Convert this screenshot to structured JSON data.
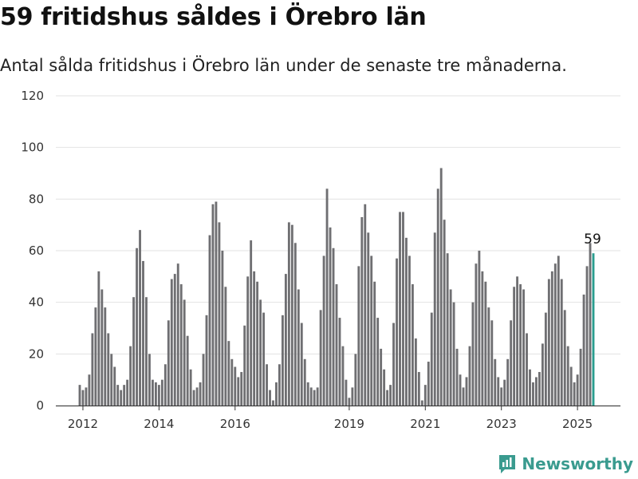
{
  "title": "59 fritidshus såldes i Örebro län",
  "subtitle": "Antal sålda fritidshus i Örebro län under de senaste tre månaderna.",
  "brand": "Newsworthy",
  "colors": {
    "bar": "#6f6f72",
    "highlight": "#2a9d8f",
    "brand": "#3a9b8f",
    "grid": "#e2e2e2"
  },
  "chart_data": {
    "type": "bar",
    "title": "59 fritidshus såldes i Örebro län",
    "subtitle": "Antal sålda fritidshus i Örebro län under de senaste tre månaderna.",
    "xlabel": "",
    "ylabel": "",
    "ylim": [
      0,
      120
    ],
    "yticks": [
      0,
      20,
      40,
      60,
      80,
      100,
      120
    ],
    "grid": true,
    "x_start": "2011-12",
    "x_end": "2025-07",
    "xtick_labels": [
      {
        "label": "2012",
        "date": "2012-01"
      },
      {
        "label": "2014",
        "date": "2014-01"
      },
      {
        "label": "2016",
        "date": "2016-01"
      },
      {
        "label": "2019",
        "date": "2019-01"
      },
      {
        "label": "2021",
        "date": "2021-01"
      },
      {
        "label": "2023",
        "date": "2023-01"
      },
      {
        "label": "2025",
        "date": "2025-01"
      }
    ],
    "highlight_label": "59",
    "values": [
      8,
      6,
      7,
      12,
      28,
      38,
      52,
      45,
      38,
      28,
      20,
      15,
      8,
      6,
      8,
      10,
      23,
      42,
      61,
      68,
      56,
      42,
      20,
      10,
      9,
      8,
      10,
      16,
      33,
      49,
      51,
      55,
      47,
      41,
      27,
      14,
      6,
      7,
      9,
      20,
      35,
      66,
      78,
      79,
      71,
      60,
      46,
      25,
      18,
      15,
      11,
      13,
      31,
      50,
      64,
      52,
      48,
      41,
      36,
      16,
      6,
      2,
      9,
      16,
      35,
      51,
      71,
      70,
      63,
      45,
      32,
      18,
      9,
      7,
      6,
      7,
      37,
      58,
      84,
      69,
      61,
      47,
      34,
      23,
      10,
      3,
      7,
      20,
      54,
      73,
      78,
      67,
      58,
      48,
      34,
      22,
      14,
      6,
      8,
      32,
      57,
      75,
      75,
      65,
      58,
      47,
      26,
      13,
      2,
      8,
      17,
      36,
      67,
      84,
      92,
      72,
      59,
      45,
      40,
      22,
      12,
      7,
      11,
      23,
      40,
      55,
      60,
      52,
      48,
      38,
      33,
      18,
      11,
      7,
      10,
      18,
      33,
      46,
      50,
      47,
      45,
      28,
      14,
      9,
      11,
      13,
      24,
      36,
      49,
      52,
      55,
      58,
      49,
      37,
      23,
      15,
      9,
      12,
      22,
      43,
      54,
      63,
      59
    ]
  }
}
